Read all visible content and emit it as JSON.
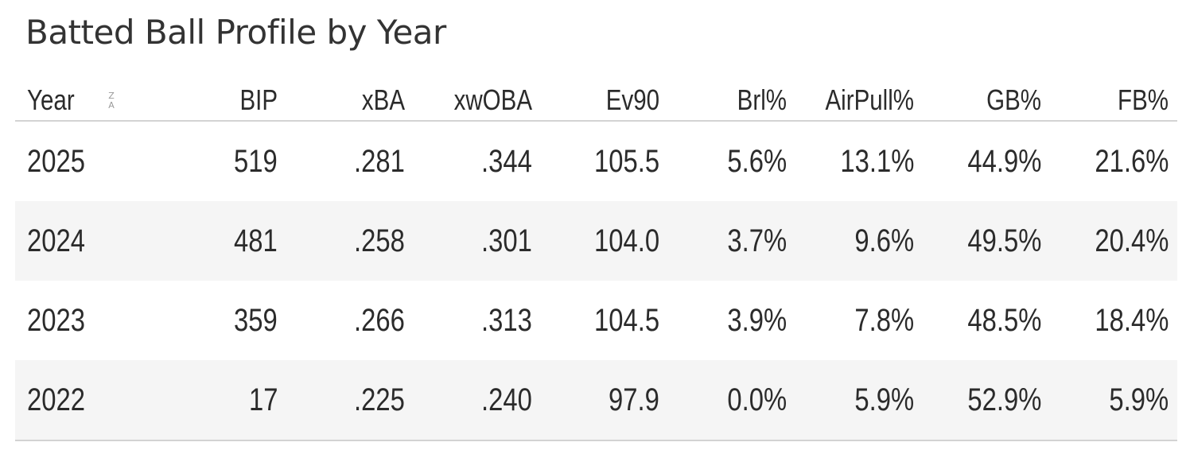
{
  "title": "Batted Ball Profile by Year",
  "sort_icon": {
    "top": "Z",
    "bottom": "A"
  },
  "columns": [
    "Year",
    "BIP",
    "xBA",
    "xwOBA",
    "Ev90",
    "Brl%",
    "AirPull%",
    "GB%",
    "FB%"
  ],
  "rows": [
    [
      "2025",
      "519",
      ".281",
      ".344",
      "105.5",
      "5.6%",
      "13.1%",
      "44.9%",
      "21.6%"
    ],
    [
      "2024",
      "481",
      ".258",
      ".301",
      "104.0",
      "3.7%",
      "9.6%",
      "49.5%",
      "20.4%"
    ],
    [
      "2023",
      "359",
      ".266",
      ".313",
      "104.5",
      "3.9%",
      "7.8%",
      "48.5%",
      "18.4%"
    ],
    [
      "2022",
      "17",
      ".225",
      ".240",
      "97.9",
      "0.0%",
      "5.9%",
      "52.9%",
      "5.9%"
    ]
  ]
}
